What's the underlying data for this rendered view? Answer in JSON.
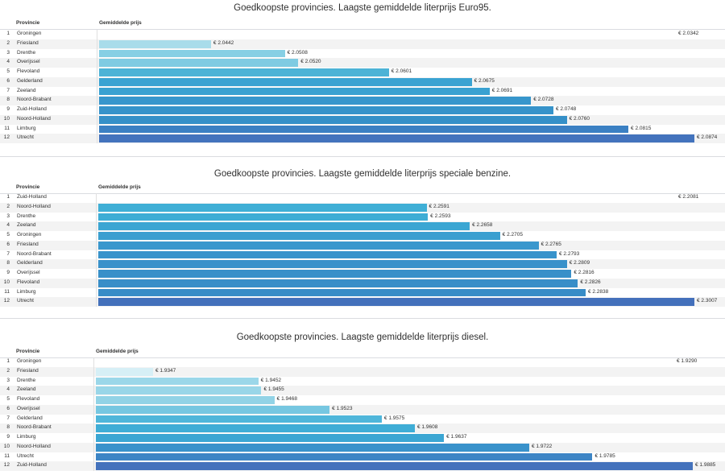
{
  "chart_data": [
    {
      "type": "table",
      "title": "Goedkoopste provincies. Laagste gemiddelde literprijs Euro95.",
      "columns": [
        "Provincie",
        "Gemiddelde prijs"
      ],
      "bar_min": 2.0342,
      "rows": [
        {
          "rank": "1",
          "provincie": "Groningen",
          "value": 2.0342,
          "label": "€ 2.0342",
          "color": "#ffffff"
        },
        {
          "rank": "2",
          "provincie": "Friesland",
          "value": 2.0442,
          "label": "€ 2.0442",
          "color": "#a8dcea"
        },
        {
          "rank": "3",
          "provincie": "Drenthe",
          "value": 2.0508,
          "label": "€ 2.0508",
          "color": "#86cfe4"
        },
        {
          "rank": "4",
          "provincie": "Overijssel",
          "value": 2.052,
          "label": "€ 2.0520",
          "color": "#7fcbe2"
        },
        {
          "rank": "5",
          "provincie": "Flevoland",
          "value": 2.0601,
          "label": "€ 2.0601",
          "color": "#4db3d6"
        },
        {
          "rank": "6",
          "provincie": "Gelderland",
          "value": 2.0675,
          "label": "€ 2.0675",
          "color": "#3aa3d2"
        },
        {
          "rank": "7",
          "provincie": "Zeeland",
          "value": 2.0691,
          "label": "€ 2.0691",
          "color": "#39a1d1"
        },
        {
          "rank": "8",
          "provincie": "Noord-Brabant",
          "value": 2.0728,
          "label": "€ 2.0728",
          "color": "#3796cc"
        },
        {
          "rank": "9",
          "provincie": "Zuid-Holland",
          "value": 2.0748,
          "label": "€ 2.0748",
          "color": "#3693ca"
        },
        {
          "rank": "10",
          "provincie": "Noord-Holland",
          "value": 2.076,
          "label": "€ 2.0760",
          "color": "#3590c8"
        },
        {
          "rank": "11",
          "provincie": "Limburg",
          "value": 2.0815,
          "label": "€ 2.0815",
          "color": "#3b80c3"
        },
        {
          "rank": "12",
          "provincie": "Utrecht",
          "value": 2.0874,
          "label": "€ 2.0874",
          "color": "#4373bd"
        }
      ]
    },
    {
      "type": "table",
      "title": "Goedkoopste provincies. Laagste gemiddelde literprijs speciale benzine.",
      "columns": [
        "Provincie",
        "Gemiddelde prijs"
      ],
      "bar_min": 2.2081,
      "rows": [
        {
          "rank": "1",
          "provincie": "Zuid-Holland",
          "value": 2.2081,
          "label": "€ 2.2081",
          "color": "#ffffff"
        },
        {
          "rank": "2",
          "provincie": "Noord-Holland",
          "value": 2.2591,
          "label": "€ 2.2591",
          "color": "#3fafd6"
        },
        {
          "rank": "3",
          "provincie": "Drenthe",
          "value": 2.2593,
          "label": "€ 2.2593",
          "color": "#3eadd5"
        },
        {
          "rank": "4",
          "provincie": "Zeeland",
          "value": 2.2658,
          "label": "€ 2.2658",
          "color": "#3ba6d3"
        },
        {
          "rank": "5",
          "provincie": "Groningen",
          "value": 2.2705,
          "label": "€ 2.2705",
          "color": "#3a9fd0"
        },
        {
          "rank": "6",
          "provincie": "Friesland",
          "value": 2.2765,
          "label": "€ 2.2765",
          "color": "#3997cd"
        },
        {
          "rank": "7",
          "provincie": "Noord-Brabant",
          "value": 2.2793,
          "label": "€ 2.2793",
          "color": "#3893cb"
        },
        {
          "rank": "8",
          "provincie": "Gelderland",
          "value": 2.2809,
          "label": "€ 2.2809",
          "color": "#3891ca"
        },
        {
          "rank": "9",
          "provincie": "Overijssel",
          "value": 2.2816,
          "label": "€ 2.2816",
          "color": "#3890c9"
        },
        {
          "rank": "10",
          "provincie": "Flevoland",
          "value": 2.2826,
          "label": "€ 2.2826",
          "color": "#388ec8"
        },
        {
          "rank": "11",
          "provincie": "Limburg",
          "value": 2.2838,
          "label": "€ 2.2838",
          "color": "#388cc7"
        },
        {
          "rank": "12",
          "provincie": "Utrecht",
          "value": 2.3007,
          "label": "€ 2.3007",
          "color": "#4370bb"
        }
      ]
    },
    {
      "type": "table",
      "title": "Goedkoopste provincies. Laagste gemiddelde literprijs diesel.",
      "columns": [
        "Provincie",
        "Gemiddelde prijs"
      ],
      "bar_min": 1.929,
      "rows": [
        {
          "rank": "1",
          "provincie": "Groningen",
          "value": 1.929,
          "label": "€ 1.9290",
          "color": "#ffffff"
        },
        {
          "rank": "2",
          "provincie": "Friesland",
          "value": 1.9347,
          "label": "€ 1.9347",
          "color": "#d6eff6"
        },
        {
          "rank": "3",
          "provincie": "Drenthe",
          "value": 1.9452,
          "label": "€ 1.9452",
          "color": "#9bd7e9"
        },
        {
          "rank": "4",
          "provincie": "Zeeland",
          "value": 1.9455,
          "label": "€ 1.9455",
          "color": "#99d6e8"
        },
        {
          "rank": "5",
          "provincie": "Flevoland",
          "value": 1.9468,
          "label": "€ 1.9468",
          "color": "#92d3e6"
        },
        {
          "rank": "6",
          "provincie": "Overijssel",
          "value": 1.9523,
          "label": "€ 1.9523",
          "color": "#76c7e1"
        },
        {
          "rank": "7",
          "provincie": "Gelderland",
          "value": 1.9575,
          "label": "€ 1.9575",
          "color": "#4fb6da"
        },
        {
          "rank": "8",
          "provincie": "Noord-Brabant",
          "value": 1.9608,
          "label": "€ 1.9608",
          "color": "#3fadd6"
        },
        {
          "rank": "9",
          "provincie": "Limburg",
          "value": 1.9637,
          "label": "€ 1.9637",
          "color": "#3ba6d3"
        },
        {
          "rank": "10",
          "provincie": "Noord-Holland",
          "value": 1.9722,
          "label": "€ 1.9722",
          "color": "#3992cb"
        },
        {
          "rank": "11",
          "provincie": "Utrecht",
          "value": 1.9785,
          "label": "€ 1.9785",
          "color": "#3d85c5"
        },
        {
          "rank": "12",
          "provincie": "Zuid-Holland",
          "value": 1.9885,
          "label": "€ 1.9885",
          "color": "#4472bc"
        }
      ]
    }
  ]
}
